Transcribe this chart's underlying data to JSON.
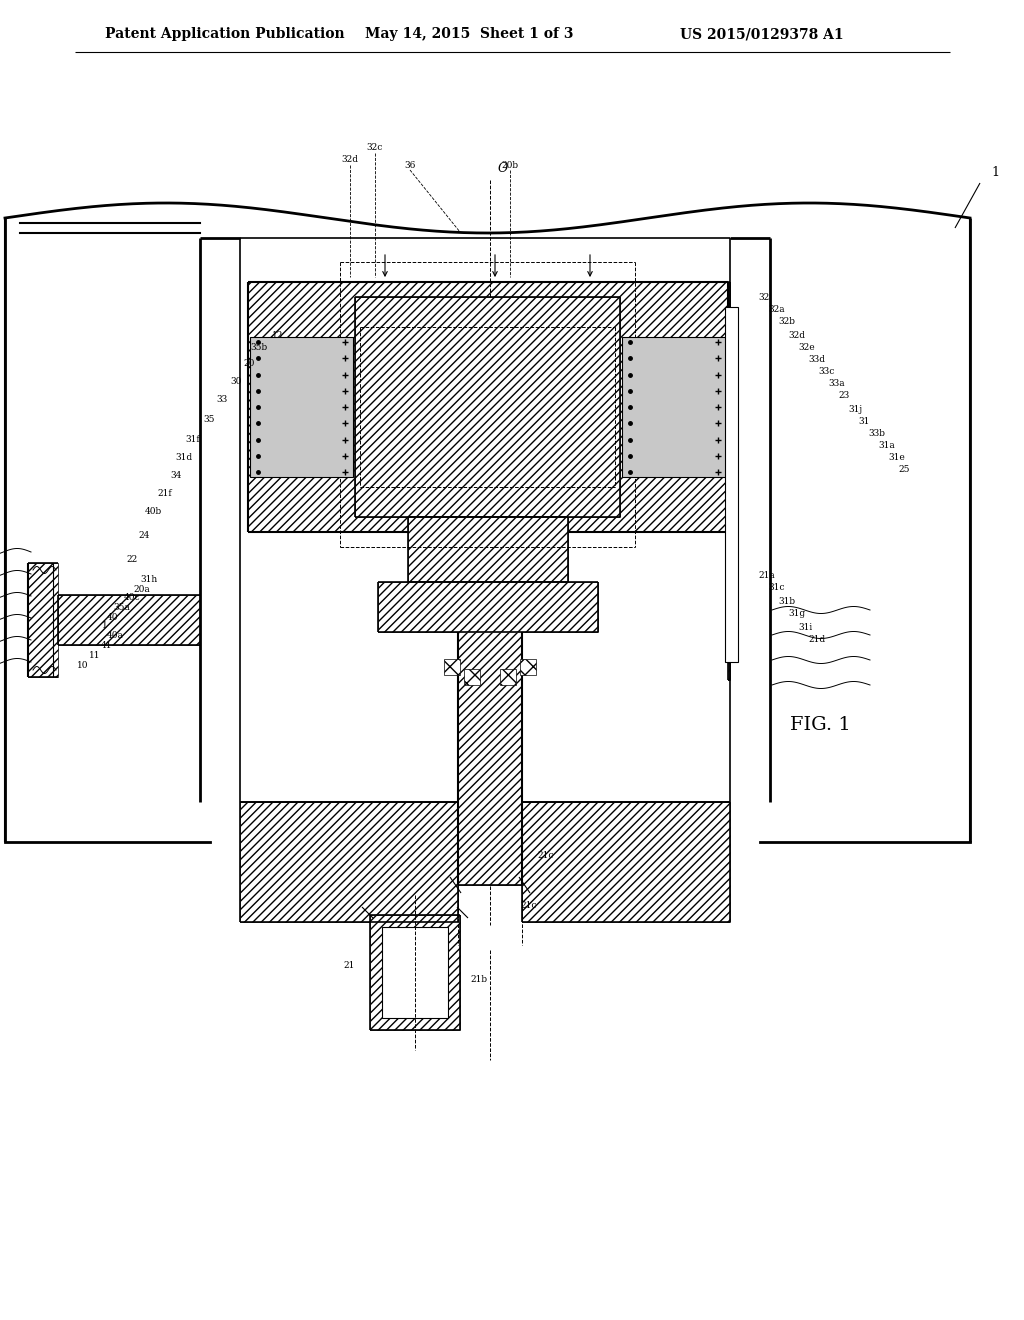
{
  "header_left": "Patent Application Publication",
  "header_mid": "May 14, 2015  Sheet 1 of 3",
  "header_right": "US 2015/0129378 A1",
  "figure_label": "FIG. 1",
  "bg_color": "#ffffff"
}
